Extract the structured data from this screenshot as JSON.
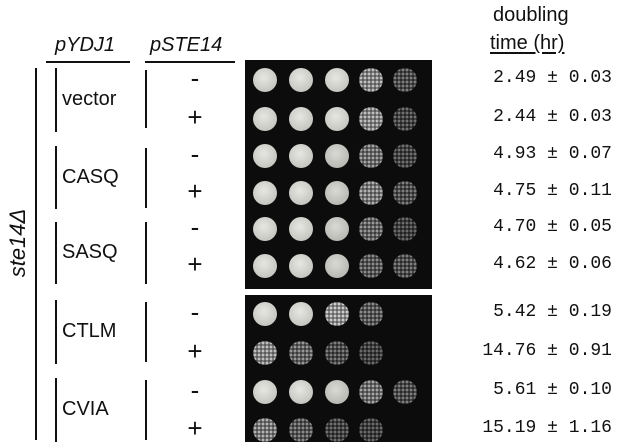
{
  "headers": {
    "ydj1": "pYDJ1",
    "ste14": "pSTE14",
    "doubling_line1": "doubling",
    "doubling_line2": "time (hr)"
  },
  "strain": "ste14Δ",
  "groups": [
    {
      "name": "vector",
      "rows": [
        {
          "sign": "-",
          "value": "2.49",
          "pm": "±",
          "error": "0.03",
          "spot_growth": [
            1,
            1,
            1,
            0.7,
            0.2
          ]
        },
        {
          "sign": "+",
          "value": "2.44",
          "pm": "±",
          "error": "0.03",
          "spot_growth": [
            1,
            1,
            1,
            0.7,
            0.1
          ]
        }
      ]
    },
    {
      "name": "CASQ",
      "rows": [
        {
          "sign": "-",
          "value": "4.93",
          "pm": "±",
          "error": "0.07",
          "spot_growth": [
            1,
            1,
            0.9,
            0.5,
            0.1
          ]
        },
        {
          "sign": "+",
          "value": "4.75",
          "pm": "±",
          "error": "0.11",
          "spot_growth": [
            1,
            1,
            0.9,
            0.6,
            0.2
          ]
        }
      ]
    },
    {
      "name": "SASQ",
      "rows": [
        {
          "sign": "-",
          "value": "4.70",
          "pm": "±",
          "error": "0.05",
          "spot_growth": [
            1,
            1,
            0.9,
            0.4,
            0.05
          ]
        },
        {
          "sign": "+",
          "value": "4.62",
          "pm": "±",
          "error": "0.06",
          "spot_growth": [
            1,
            1,
            0.9,
            0.3,
            0.2
          ]
        }
      ]
    },
    {
      "name": "CTLM",
      "rows": [
        {
          "sign": "-",
          "value": "5.42",
          "pm": "±",
          "error": "0.19",
          "spot_growth": [
            1,
            1,
            0.8,
            0.3,
            0
          ]
        },
        {
          "sign": "+",
          "value": "14.76",
          "pm": "±",
          "error": "0.91",
          "spot_growth": [
            0.7,
            0.4,
            0.2,
            0.05,
            0
          ]
        }
      ]
    },
    {
      "name": "CVIA",
      "rows": [
        {
          "sign": "-",
          "value": "5.61",
          "pm": "±",
          "error": "0.10",
          "spot_growth": [
            1,
            1,
            0.9,
            0.5,
            0.2
          ]
        },
        {
          "sign": "+",
          "value": "15.19",
          "pm": "±",
          "error": "1.16",
          "spot_growth": [
            0.6,
            0.3,
            0.1,
            0.05,
            0
          ]
        }
      ]
    }
  ]
}
